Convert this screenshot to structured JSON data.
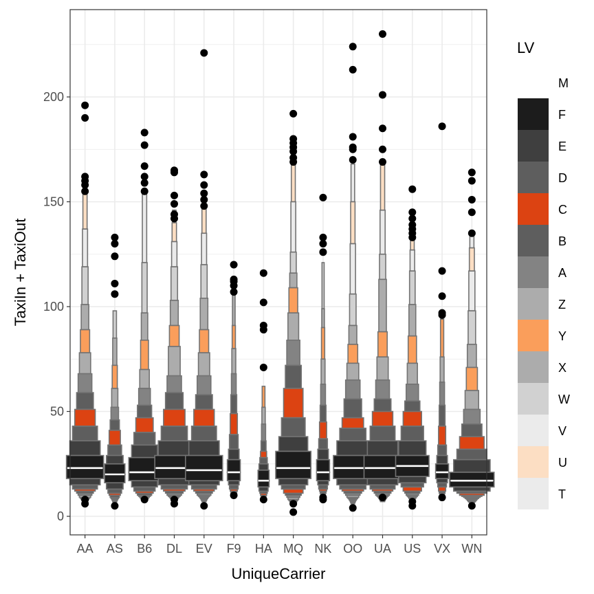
{
  "chart_data": {
    "type": "letter-value boxplot",
    "title": "",
    "xlabel": "UniqueCarrier",
    "ylabel": "TaxiIn + TaxiOut",
    "ylim": [
      -4,
      242
    ],
    "yticks": [
      0,
      50,
      100,
      150,
      200
    ],
    "ytick_labels": [
      "0",
      "50",
      "100",
      "150",
      "200"
    ],
    "grid": true,
    "categories": [
      "AA",
      "AS",
      "B6",
      "DL",
      "EV",
      "F9",
      "HA",
      "MQ",
      "NK",
      "OO",
      "UA",
      "US",
      "VX",
      "WN"
    ],
    "legend": {
      "title": "LV",
      "position": "right",
      "entries": [
        {
          "label": "M",
          "color": null
        },
        {
          "label": "F",
          "color": "#1c1c1c"
        },
        {
          "label": "E",
          "color": "#3f3f3f"
        },
        {
          "label": "D",
          "color": "#5e5e5e"
        },
        {
          "label": "C",
          "color": "#dc4312"
        },
        {
          "label": "B",
          "color": "#5e5e5e"
        },
        {
          "label": "A",
          "color": "#838383"
        },
        {
          "label": "Z",
          "color": "#acacac"
        },
        {
          "label": "Y",
          "color": "#fa9e5b"
        },
        {
          "label": "X",
          "color": "#acacac"
        },
        {
          "label": "W",
          "color": "#d1d1d1"
        },
        {
          "label": "V",
          "color": "#ebebeb"
        },
        {
          "label": "U",
          "color": "#fcdec3"
        },
        {
          "label": "T",
          "color": "#ebebeb"
        }
      ]
    },
    "median_color": "#ffffff",
    "outline_color": "#737373",
    "series": [
      {
        "name": "AA",
        "median": 23,
        "size": 1.0,
        "upper": [
          29,
          36,
          43,
          51,
          59,
          68,
          78,
          89,
          101,
          119,
          137,
          154
        ],
        "lower": [
          18,
          15,
          13,
          12,
          11,
          10,
          9,
          8.5,
          8,
          7.5,
          7,
          7
        ],
        "outliers": [
          6,
          8,
          155,
          158,
          160,
          162,
          190,
          196
        ]
      },
      {
        "name": "AS",
        "median": 20,
        "size": 0.55,
        "upper": [
          25,
          29,
          34,
          41,
          46,
          52,
          61,
          72,
          85,
          98
        ],
        "lower": [
          16,
          13,
          11,
          10,
          9,
          8.5,
          8,
          7.5,
          7,
          6.5
        ],
        "outliers": [
          5,
          106,
          111,
          124,
          130,
          133
        ]
      },
      {
        "name": "B6",
        "median": 21,
        "size": 0.85,
        "upper": [
          28,
          34,
          40,
          47,
          53,
          61,
          70,
          84,
          97,
          121,
          155
        ],
        "lower": [
          17,
          14,
          12,
          11,
          10,
          9.5,
          9,
          8.5,
          8,
          8,
          8
        ],
        "outliers": [
          8,
          155,
          159,
          162,
          167,
          177,
          183
        ]
      },
      {
        "name": "DL",
        "median": 23,
        "size": 1.05,
        "upper": [
          29,
          36,
          43,
          51,
          59,
          67,
          81,
          91,
          103,
          119,
          131,
          140,
          146
        ],
        "lower": [
          18,
          15,
          13,
          12,
          11,
          10,
          9.5,
          9,
          8.5,
          8,
          7.5,
          7,
          7
        ],
        "outliers": [
          6,
          8,
          142,
          144,
          149,
          153,
          164,
          165
        ]
      },
      {
        "name": "EV",
        "median": 22,
        "size": 1.0,
        "upper": [
          29,
          36,
          43,
          51,
          58,
          67,
          78,
          89,
          104,
          120,
          135,
          148
        ],
        "lower": [
          17,
          15,
          13,
          12,
          11,
          10,
          9.5,
          9,
          8.5,
          8,
          7.5,
          7
        ],
        "outliers": [
          5,
          148,
          151,
          154,
          158,
          163,
          221
        ]
      },
      {
        "name": "F9",
        "median": 21,
        "size": 0.35,
        "upper": [
          27,
          32,
          39,
          49,
          58,
          68,
          80,
          91,
          107
        ],
        "lower": [
          17,
          15,
          13,
          12,
          11,
          11,
          10.5,
          10,
          10
        ],
        "outliers": [
          10,
          107,
          110,
          112,
          113,
          120
        ]
      },
      {
        "name": "HA",
        "median": 17,
        "size": 0.3,
        "upper": [
          22,
          25,
          28,
          31,
          36,
          44,
          52,
          62
        ],
        "lower": [
          14,
          12,
          11,
          10,
          9.5,
          9,
          8.5,
          8
        ],
        "outliers": [
          8,
          71,
          89,
          91,
          102,
          116
        ]
      },
      {
        "name": "MQ",
        "median": 23,
        "size": 0.95,
        "upper": [
          31,
          38,
          47,
          61,
          72,
          84,
          97,
          109,
          116,
          126,
          150,
          168
        ],
        "lower": [
          18,
          15,
          13,
          11,
          10,
          9,
          8,
          7.5,
          7,
          6.5,
          6,
          6
        ],
        "outliers": [
          2,
          6,
          169,
          171,
          174,
          176,
          178,
          180,
          192
        ]
      },
      {
        "name": "NK",
        "median": 21,
        "size": 0.35,
        "upper": [
          27,
          32,
          37,
          45,
          53,
          63,
          75,
          90,
          99,
          121
        ],
        "lower": [
          17,
          15,
          13,
          12,
          11,
          10.5,
          10,
          9.5,
          9,
          9
        ],
        "outliers": [
          8,
          9,
          126,
          130,
          133,
          152
        ]
      },
      {
        "name": "OO",
        "median": 23,
        "size": 1.05,
        "upper": [
          29,
          36,
          42,
          47,
          56,
          65,
          73,
          82,
          91,
          106,
          130,
          150,
          168
        ],
        "lower": [
          18,
          15,
          13,
          12,
          11,
          10,
          9,
          8.5,
          8,
          7.5,
          7,
          6.5,
          6
        ],
        "outliers": [
          4,
          170,
          175,
          176,
          181,
          213,
          224
        ]
      },
      {
        "name": "UA",
        "median": 23,
        "size": 1.0,
        "upper": [
          29,
          36,
          43,
          50,
          56,
          65,
          76,
          88,
          113,
          125,
          146,
          168
        ],
        "lower": [
          18,
          15,
          13,
          12,
          11,
          10,
          9.5,
          9,
          8.5,
          8,
          7.5,
          7
        ],
        "outliers": [
          9,
          169,
          175,
          185,
          201,
          230
        ]
      },
      {
        "name": "US",
        "median": 24,
        "size": 0.9,
        "upper": [
          29,
          36,
          43,
          50,
          55,
          63,
          73,
          86,
          101,
          117,
          127,
          133
        ],
        "lower": [
          19,
          16,
          14,
          12,
          11,
          10,
          9.5,
          9,
          8.5,
          8,
          7.5,
          7
        ],
        "outliers": [
          5,
          7,
          133,
          135,
          137,
          139,
          142,
          145,
          156
        ]
      },
      {
        "name": "VX",
        "median": 21,
        "size": 0.35,
        "upper": [
          25,
          29,
          34,
          43,
          53,
          64,
          76,
          94
        ],
        "lower": [
          18,
          16,
          14,
          12,
          11,
          10.5,
          10,
          9.5
        ],
        "outliers": [
          9,
          96,
          97,
          105,
          117,
          186
        ]
      },
      {
        "name": "WN",
        "median": 17,
        "size": 1.2,
        "upper": [
          21,
          27,
          32,
          38,
          44,
          51,
          60,
          71,
          82,
          98,
          117,
          128,
          135
        ],
        "lower": [
          14,
          12,
          11,
          10,
          9.5,
          9,
          8.5,
          8,
          7.5,
          7,
          7,
          6.5,
          6
        ],
        "outliers": [
          5,
          135,
          145,
          151,
          160,
          164
        ]
      }
    ]
  }
}
